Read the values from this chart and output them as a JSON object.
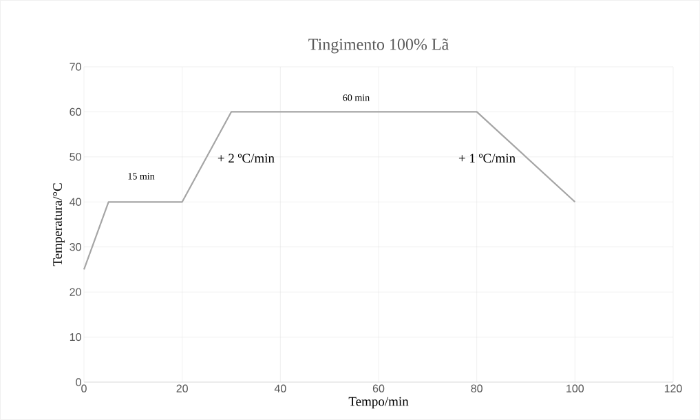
{
  "chart_data": {
    "type": "line",
    "title": "Tingimento 100% Lã",
    "xlabel": "Tempo/min",
    "ylabel": "Temperatura/°C",
    "x": [
      0,
      5,
      20,
      30,
      80,
      100
    ],
    "series": [
      {
        "color": "#a5a5a5",
        "values": [
          25,
          40,
          40,
          60,
          60,
          40
        ]
      }
    ],
    "xlim": [
      0,
      120
    ],
    "xticks": [
      0,
      20,
      40,
      60,
      80,
      100,
      120
    ],
    "ylim": [
      0,
      70
    ],
    "yticks": [
      0,
      10,
      20,
      30,
      40,
      50,
      60,
      70
    ],
    "grid": true,
    "legend": false,
    "marker": "none",
    "line_style": "solid",
    "annotations": [
      "15 min",
      "60 min",
      "+ 2 ºC/min",
      "+ 1 ºC/min"
    ]
  }
}
